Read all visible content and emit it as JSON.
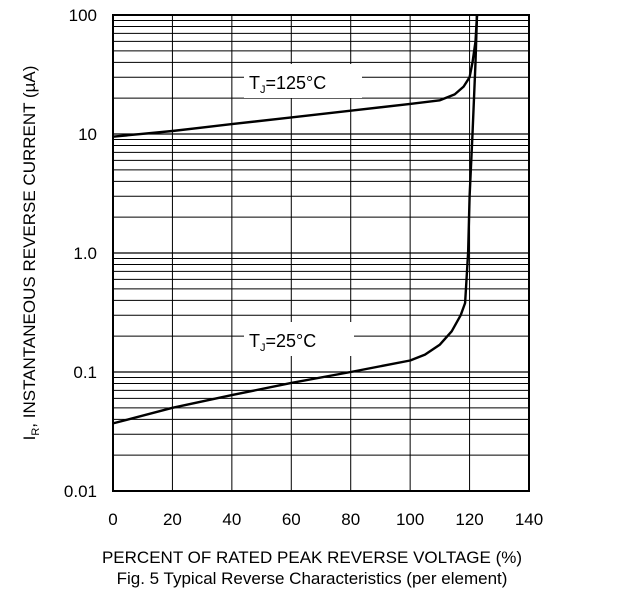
{
  "chart_data": {
    "type": "line",
    "title": "",
    "xlabel": "PERCENT OF RATED PEAK REVERSE VOLTAGE (%)",
    "ylabel_main": "I",
    "ylabel_sub": "R",
    "ylabel_rest": ", INSTANTANEOUS REVERSE CURRENT (µA)",
    "caption": "Fig. 5  Typical Reverse Characteristics (per element)",
    "x_scale": "linear",
    "y_scale": "log",
    "xlim": [
      0,
      140
    ],
    "ylim": [
      0.01,
      100
    ],
    "x_ticks": [
      "0",
      "20",
      "40",
      "60",
      "80",
      "100",
      "120",
      "140"
    ],
    "y_ticks": [
      "0.01",
      "0.1",
      "1.0",
      "10",
      "100"
    ],
    "grid": true,
    "series": [
      {
        "name": "TJ=125°C",
        "label_main": "T",
        "label_sub": "J",
        "label_rest": "=125°C",
        "x": [
          0,
          20,
          40,
          60,
          80,
          100,
          110,
          115,
          118,
          120,
          121,
          122,
          122.5
        ],
        "y": [
          9.5,
          10.6,
          12.1,
          13.8,
          15.7,
          17.9,
          19.2,
          21.5,
          25,
          30,
          40,
          60,
          100
        ]
      },
      {
        "name": "TJ=25°C",
        "label_main": "T",
        "label_sub": "J",
        "label_rest": "=25°C",
        "x": [
          0,
          20,
          40,
          60,
          80,
          100,
          105,
          110,
          114,
          117,
          118.5,
          119.5,
          120,
          121,
          122,
          122.5
        ],
        "y": [
          0.037,
          0.05,
          0.064,
          0.081,
          0.1,
          0.125,
          0.14,
          0.17,
          0.22,
          0.3,
          0.38,
          1.0,
          3.0,
          10,
          40,
          100
        ]
      }
    ]
  }
}
